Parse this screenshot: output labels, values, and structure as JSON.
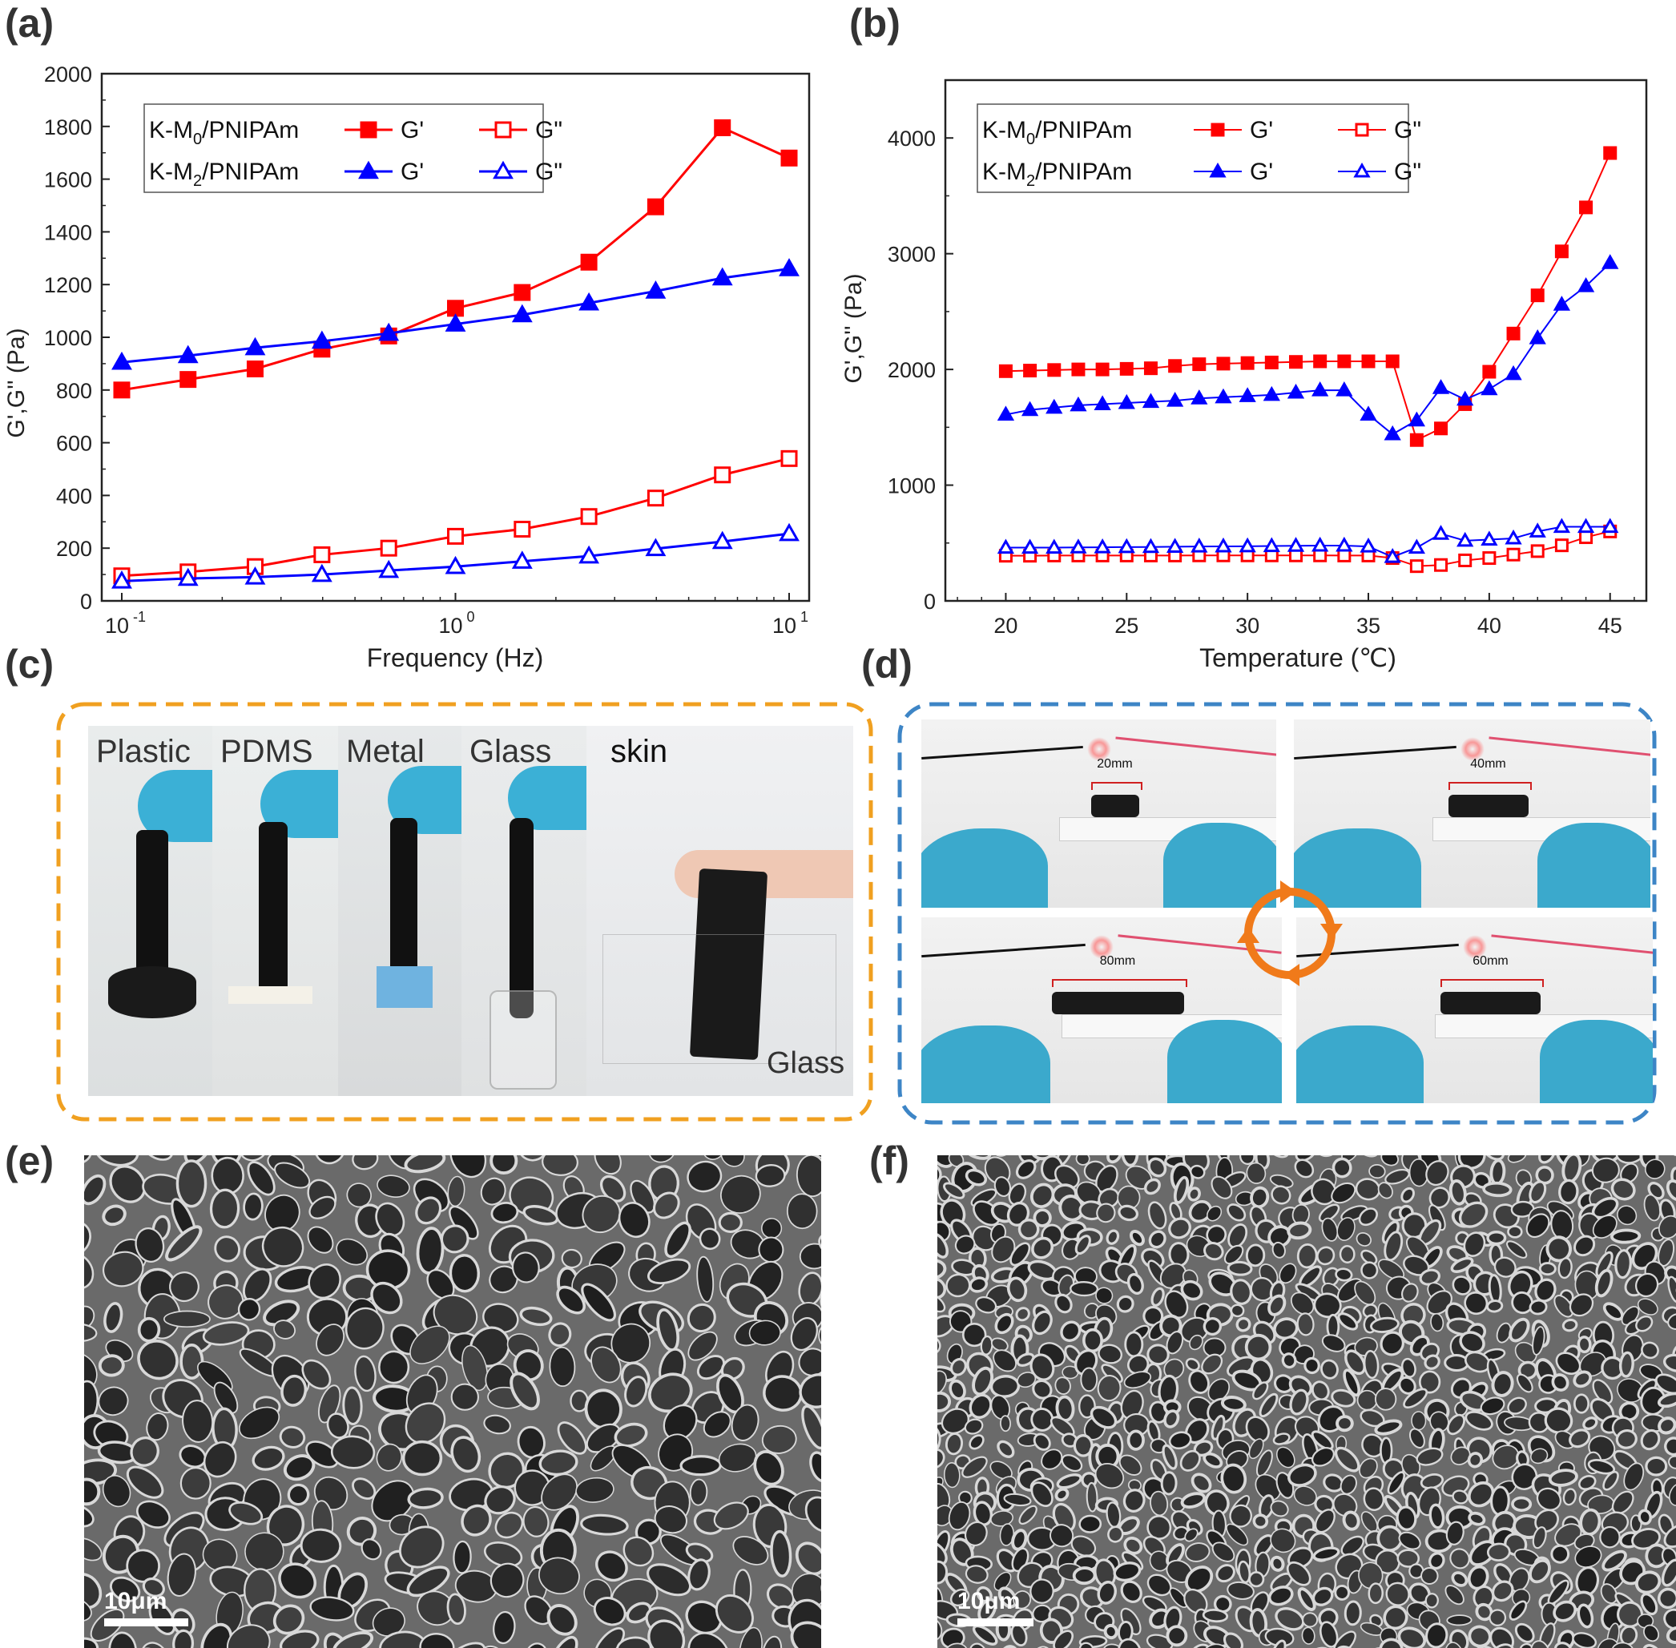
{
  "panel_labels": {
    "a": "(a)",
    "b": "(b)",
    "c": "(c)",
    "d": "(d)",
    "e": "(e)",
    "f": "(f)"
  },
  "colors": {
    "red": "#ff0000",
    "blue": "#0000ff",
    "orange_frame": "#f0a020",
    "blue_frame": "#3d85c6",
    "arrows": "#f07a1a"
  },
  "chart_data": [
    {
      "type": "line",
      "xlabel": "Frequency (Hz)",
      "ylabel": "G',G'' (Pa)",
      "xscale": "log",
      "xlim": [
        0.1,
        10
      ],
      "ylim": [
        0,
        2000
      ],
      "yticks": [
        "0",
        "200",
        "400",
        "600",
        "800",
        "1000",
        "1200",
        "1400",
        "1600",
        "1800",
        "2000"
      ],
      "xticks": [
        {
          "base": "10",
          "exp": "-1"
        },
        {
          "base": "10",
          "exp": "0"
        },
        {
          "base": "10",
          "exp": "1"
        }
      ],
      "legend_position": "top-left",
      "legend": {
        "rows": [
          {
            "sample": "K-M",
            "sub": "0",
            "rest": "/PNIPAm"
          },
          {
            "sample": "K-M",
            "sub": "2",
            "rest": "/PNIPAm"
          }
        ],
        "gprime": "G'",
        "gdouble": "G\""
      },
      "x": [
        0.1,
        0.158,
        0.251,
        0.398,
        0.631,
        1.0,
        1.585,
        2.512,
        3.981,
        6.31,
        10.0
      ],
      "series": [
        {
          "name": "K-M0/PNIPAm G'",
          "color": "#ff0000",
          "marker": "square-filled",
          "values": [
            800,
            840,
            880,
            955,
            1005,
            1110,
            1170,
            1285,
            1495,
            1795,
            1680
          ]
        },
        {
          "name": "K-M0/PNIPAm G\"",
          "color": "#ff0000",
          "marker": "square-open",
          "values": [
            95,
            110,
            130,
            175,
            200,
            245,
            272,
            320,
            390,
            478,
            540
          ]
        },
        {
          "name": "K-M2/PNIPAm G'",
          "color": "#0000ff",
          "marker": "triangle-filled",
          "values": [
            905,
            930,
            960,
            985,
            1015,
            1050,
            1085,
            1130,
            1175,
            1225,
            1260
          ]
        },
        {
          "name": "K-M2/PNIPAm G\"",
          "color": "#0000ff",
          "marker": "triangle-open",
          "values": [
            75,
            85,
            90,
            100,
            115,
            130,
            150,
            170,
            198,
            225,
            255
          ]
        }
      ]
    },
    {
      "type": "line",
      "xlabel": "Temperature (℃)",
      "ylabel": "G',G'' (Pa)",
      "xlim": [
        17.5,
        46.5
      ],
      "ylim": [
        0,
        4500
      ],
      "xticks": [
        "20",
        "25",
        "30",
        "35",
        "40",
        "45"
      ],
      "yticks": [
        "0",
        "1000",
        "2000",
        "3000",
        "4000"
      ],
      "legend_position": "top-left",
      "legend": {
        "rows": [
          {
            "sample": "K-M",
            "sub": "0",
            "rest": "/PNIPAm"
          },
          {
            "sample": "K-M",
            "sub": "2",
            "rest": "/PNIPAm"
          }
        ],
        "gprime": "G'",
        "gdouble": "G\""
      },
      "x": [
        20,
        21,
        22,
        23,
        24,
        25,
        26,
        27,
        28,
        29,
        30,
        31,
        32,
        33,
        34,
        35,
        36,
        37,
        38,
        39,
        40,
        41,
        42,
        43,
        44,
        45
      ],
      "series": [
        {
          "name": "K-M0/PNIPAm G'",
          "color": "#ff0000",
          "marker": "square-filled",
          "values": [
            1985,
            1990,
            1995,
            2000,
            2000,
            2005,
            2010,
            2030,
            2045,
            2050,
            2055,
            2060,
            2065,
            2070,
            2070,
            2070,
            2070,
            1390,
            1490,
            1700,
            1980,
            2310,
            2640,
            3020,
            3400,
            3870
          ]
        },
        {
          "name": "K-M0/PNIPAm G\"",
          "color": "#ff0000",
          "marker": "square-open",
          "values": [
            390,
            390,
            392,
            392,
            392,
            392,
            392,
            392,
            393,
            393,
            393,
            393,
            393,
            393,
            392,
            392,
            370,
            300,
            310,
            350,
            370,
            400,
            430,
            480,
            550,
            600
          ]
        },
        {
          "name": "K-M2/PNIPAm G'",
          "color": "#0000ff",
          "marker": "triangle-filled",
          "values": [
            1610,
            1650,
            1670,
            1690,
            1700,
            1710,
            1720,
            1730,
            1750,
            1760,
            1770,
            1780,
            1800,
            1820,
            1820,
            1610,
            1440,
            1560,
            1840,
            1740,
            1830,
            1960,
            2270,
            2560,
            2720,
            2920
          ]
        },
        {
          "name": "K-M2/PNIPAm G\"",
          "color": "#0000ff",
          "marker": "triangle-open",
          "values": [
            460,
            460,
            460,
            462,
            463,
            465,
            466,
            468,
            470,
            471,
            472,
            474,
            476,
            478,
            478,
            470,
            380,
            460,
            580,
            520,
            530,
            540,
            600,
            640,
            640,
            640
          ]
        }
      ]
    }
  ],
  "panel_c": {
    "labels": [
      "Plastic",
      "PDMS",
      "Metal",
      "Glass",
      "skin"
    ],
    "glass_label": "Glass"
  },
  "panel_d": {
    "lengths": [
      "20mm",
      "40mm",
      "80mm",
      "60mm"
    ]
  },
  "panel_e": {
    "scale": "10μm"
  },
  "panel_f": {
    "scale": "10μm"
  }
}
